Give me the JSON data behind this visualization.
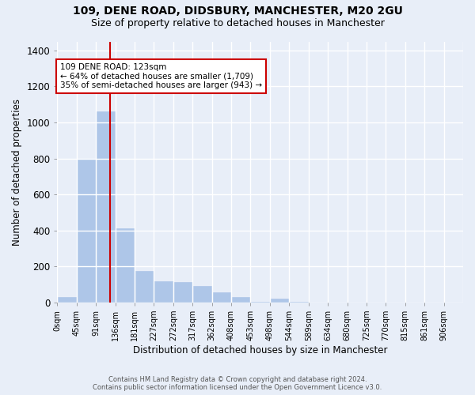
{
  "title1": "109, DENE ROAD, DIDSBURY, MANCHESTER, M20 2GU",
  "title2": "Size of property relative to detached houses in Manchester",
  "xlabel": "Distribution of detached houses by size in Manchester",
  "ylabel": "Number of detached properties",
  "bin_labels": [
    "0sqm",
    "45sqm",
    "91sqm",
    "136sqm",
    "181sqm",
    "227sqm",
    "272sqm",
    "317sqm",
    "362sqm",
    "408sqm",
    "453sqm",
    "498sqm",
    "544sqm",
    "589sqm",
    "634sqm",
    "680sqm",
    "725sqm",
    "770sqm",
    "815sqm",
    "861sqm",
    "906sqm"
  ],
  "bar_heights": [
    30,
    800,
    1060,
    410,
    175,
    120,
    115,
    90,
    55,
    30,
    5,
    20,
    5,
    0,
    0,
    0,
    0,
    0,
    0,
    0,
    0
  ],
  "bar_color": "#aec6e8",
  "bar_edge_color": "#aec6e8",
  "background_color": "#e8eef8",
  "grid_color": "#ffffff",
  "property_line_x": 2,
  "property_line_color": "#cc0000",
  "annotation_text": "109 DENE ROAD: 123sqm\n← 64% of detached houses are smaller (1,709)\n35% of semi-detached houses are larger (943) →",
  "annotation_box_color": "#ffffff",
  "annotation_box_edge_color": "#cc0000",
  "ylim": [
    0,
    1450
  ],
  "yticks": [
    0,
    200,
    400,
    600,
    800,
    1000,
    1200,
    1400
  ],
  "footer_line1": "Contains HM Land Registry data © Crown copyright and database right 2024.",
  "footer_line2": "Contains public sector information licensed under the Open Government Licence v3.0.",
  "bin_width": 1,
  "n_bins": 21
}
